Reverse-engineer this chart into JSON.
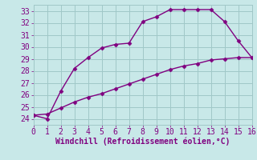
{
  "line1_x": [
    0,
    1,
    2,
    3,
    4,
    5,
    6,
    7,
    8,
    9,
    10,
    11,
    12,
    13,
    14,
    15,
    16
  ],
  "line1_y": [
    24.3,
    24.0,
    26.3,
    28.2,
    29.1,
    29.9,
    30.2,
    30.3,
    32.1,
    32.5,
    33.1,
    33.1,
    33.1,
    33.1,
    32.1,
    30.5,
    29.1
  ],
  "line2_x": [
    0,
    1,
    2,
    3,
    4,
    5,
    6,
    7,
    8,
    9,
    10,
    11,
    12,
    13,
    14,
    15,
    16
  ],
  "line2_y": [
    24.3,
    24.4,
    24.9,
    25.4,
    25.8,
    26.1,
    26.5,
    26.9,
    27.3,
    27.7,
    28.1,
    28.4,
    28.6,
    28.9,
    29.0,
    29.1,
    29.1
  ],
  "line_color": "#800080",
  "bg_color": "#c8e8e8",
  "grid_color": "#a0c8c8",
  "xlabel": "Windchill (Refroidissement éolien,°C)",
  "xlim": [
    0,
    16
  ],
  "ylim": [
    23.5,
    33.5
  ],
  "xticks": [
    0,
    1,
    2,
    3,
    4,
    5,
    6,
    7,
    8,
    9,
    10,
    11,
    12,
    13,
    14,
    15,
    16
  ],
  "yticks": [
    24,
    25,
    26,
    27,
    28,
    29,
    30,
    31,
    32,
    33
  ],
  "xlabel_color": "#800080",
  "xlabel_fontsize": 7.0,
  "tick_fontsize": 7.0,
  "tick_color": "#800080",
  "marker": "D",
  "marker_size": 2.5,
  "linewidth": 1.0
}
